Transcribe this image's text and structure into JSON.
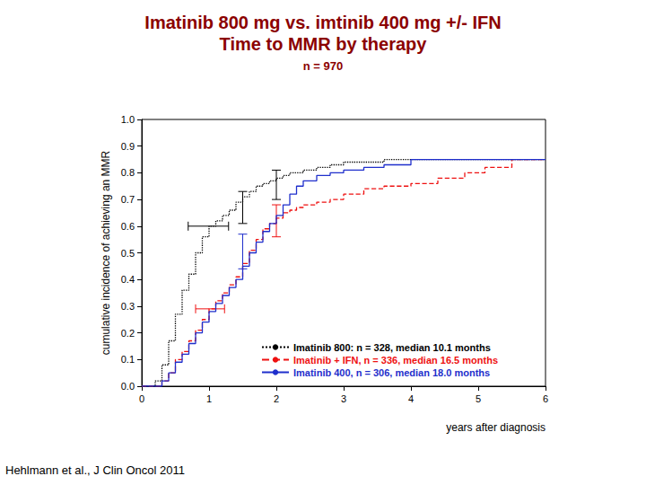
{
  "chart_data": {
    "type": "line",
    "title": "Imatinib 800 mg vs. imtinib 400 mg +/- IFN\nTime to MMR by therapy",
    "subtitle": "n = 970",
    "xlabel": "years after diagnosis",
    "ylabel": "cumulative incidence of achieving an MMR",
    "source": "Hehlmann et al., J Clin Oncol 2011",
    "x": [
      0,
      0.2,
      0.3,
      0.4,
      0.5,
      0.6,
      0.7,
      0.8,
      0.9,
      1.0,
      1.1,
      1.2,
      1.3,
      1.4,
      1.5,
      1.6,
      1.7,
      1.8,
      1.9,
      2.0,
      2.1,
      2.2,
      2.3,
      2.4,
      2.6,
      2.8,
      3.0,
      3.3,
      3.6,
      4.0,
      4.4,
      4.8,
      5.1,
      5.5,
      6.0
    ],
    "series": [
      {
        "name": "Imatinib 800: n = 328, median 10.1 months",
        "color": "#000000",
        "line_style": "dotted",
        "values": [
          0,
          0.02,
          0.08,
          0.17,
          0.27,
          0.36,
          0.42,
          0.5,
          0.56,
          0.6,
          0.62,
          0.64,
          0.66,
          0.69,
          0.71,
          0.73,
          0.75,
          0.76,
          0.77,
          0.78,
          0.79,
          0.8,
          0.8,
          0.81,
          0.82,
          0.83,
          0.84,
          0.84,
          0.85,
          0.85,
          0.85,
          0.85,
          0.85,
          0.85,
          0.85
        ],
        "ci_vertical": [
          {
            "x": 1.5,
            "low": 0.61,
            "high": 0.73
          },
          {
            "x": 2.0,
            "low": 0.7,
            "high": 0.81
          }
        ],
        "ci_horizontal": [
          {
            "y": 0.6,
            "low": 0.69,
            "high": 1.29
          }
        ]
      },
      {
        "name": "Imatinib + IFN, n = 336, median 16.5 months",
        "color": "#ee1111",
        "line_style": "dashed",
        "values": [
          0,
          0,
          0.02,
          0.05,
          0.1,
          0.13,
          0.17,
          0.21,
          0.25,
          0.29,
          0.32,
          0.35,
          0.38,
          0.41,
          0.46,
          0.51,
          0.55,
          0.59,
          0.61,
          0.63,
          0.65,
          0.66,
          0.67,
          0.68,
          0.69,
          0.7,
          0.72,
          0.74,
          0.75,
          0.76,
          0.78,
          0.8,
          0.82,
          0.85,
          0.85
        ],
        "ci_vertical": [
          {
            "x": 2.0,
            "low": 0.56,
            "high": 0.68
          }
        ],
        "ci_horizontal": [
          {
            "y": 0.29,
            "low": 0.8,
            "high": 1.23
          }
        ]
      },
      {
        "name": "Imatinib 400, n = 306, median 18.0 months",
        "color": "#1f2fcc",
        "line_style": "solid",
        "values": [
          0,
          0,
          0.02,
          0.05,
          0.09,
          0.12,
          0.16,
          0.2,
          0.24,
          0.28,
          0.31,
          0.34,
          0.37,
          0.4,
          0.45,
          0.5,
          0.54,
          0.58,
          0.61,
          0.64,
          0.68,
          0.72,
          0.75,
          0.77,
          0.79,
          0.8,
          0.81,
          0.82,
          0.83,
          0.85,
          0.85,
          0.85,
          0.85,
          0.85,
          0.85
        ],
        "ci_vertical": [
          {
            "x": 1.5,
            "low": 0.44,
            "high": 0.57
          }
        ]
      }
    ],
    "xlim": [
      0,
      6
    ],
    "xticks": [
      0,
      1,
      2,
      3,
      4,
      5,
      6
    ],
    "ylim": [
      0,
      1
    ],
    "yticks": [
      {
        "value": 0,
        "label": "0.0"
      },
      0.1,
      0.2,
      0.3,
      0.4,
      0.5,
      0.6,
      0.7,
      0.8,
      0.9,
      {
        "value": 1,
        "label": "1.0"
      }
    ],
    "legend": "lower right",
    "grid": false
  }
}
